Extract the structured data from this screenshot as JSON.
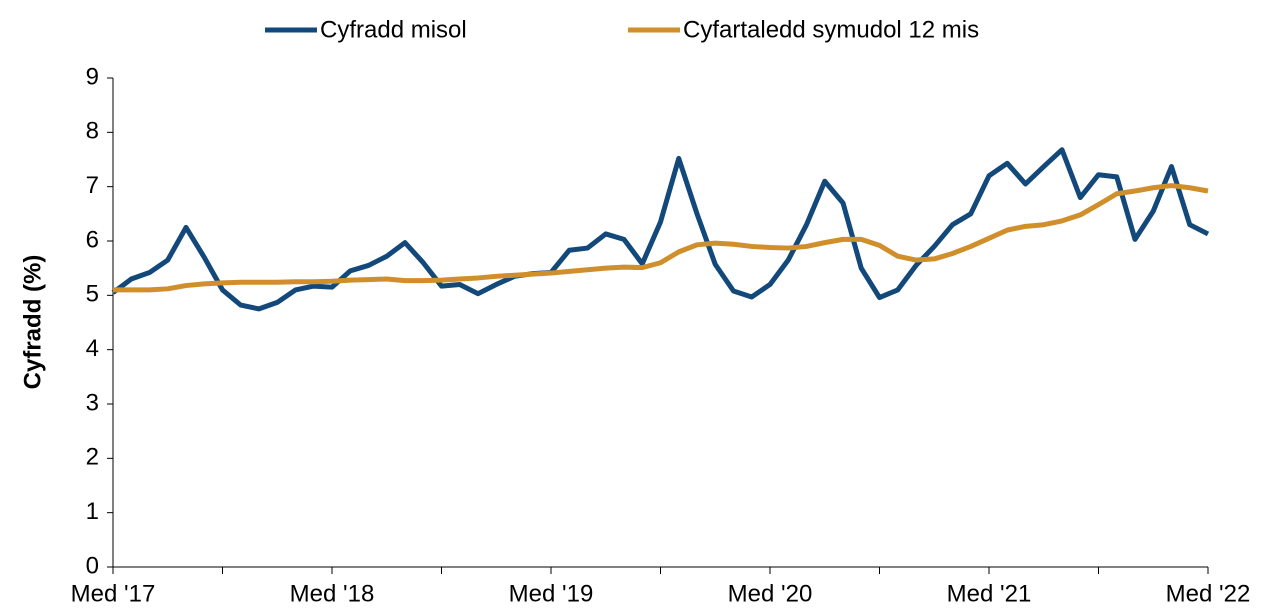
{
  "chart_data": {
    "type": "line",
    "y_label": "Cyfradd (%)",
    "categories": [
      "Med '17",
      null,
      null,
      null,
      null,
      null,
      null,
      null,
      null,
      null,
      null,
      null,
      "Med '18",
      null,
      null,
      null,
      null,
      null,
      null,
      null,
      null,
      null,
      null,
      null,
      "Med '19",
      null,
      null,
      null,
      null,
      null,
      null,
      null,
      null,
      null,
      null,
      null,
      "Med '20",
      null,
      null,
      null,
      null,
      null,
      null,
      null,
      null,
      null,
      null,
      null,
      "Med '21",
      null,
      null,
      null,
      null,
      null,
      null,
      null,
      null,
      null,
      null,
      null,
      "Med '22"
    ],
    "series": [
      {
        "name": "Cyfradd misol",
        "color": "#12497a",
        "values": [
          5.05,
          5.3,
          5.42,
          5.65,
          6.25,
          5.7,
          5.1,
          4.82,
          4.75,
          4.87,
          5.1,
          5.17,
          5.15,
          5.45,
          5.55,
          5.72,
          5.97,
          5.6,
          5.17,
          5.2,
          5.03,
          5.2,
          5.35,
          5.4,
          5.42,
          5.83,
          5.87,
          6.13,
          6.03,
          5.58,
          6.35,
          7.52,
          6.5,
          5.57,
          5.08,
          4.97,
          5.2,
          5.65,
          6.3,
          7.1,
          6.7,
          5.5,
          4.96,
          5.1,
          5.55,
          5.9,
          6.3,
          6.5,
          7.2,
          7.43,
          7.05,
          7.37,
          7.68,
          6.8,
          7.22,
          7.18,
          6.03,
          6.55,
          7.37,
          6.3,
          6.13
        ]
      },
      {
        "name": "Cyfartaledd symudol 12 mis",
        "color": "#d08f2b",
        "values": [
          5.1,
          5.1,
          5.1,
          5.12,
          5.18,
          5.21,
          5.23,
          5.24,
          5.24,
          5.24,
          5.25,
          5.25,
          5.26,
          5.28,
          5.29,
          5.3,
          5.27,
          5.27,
          5.28,
          5.3,
          5.32,
          5.35,
          5.37,
          5.39,
          5.41,
          5.44,
          5.47,
          5.5,
          5.52,
          5.51,
          5.6,
          5.8,
          5.93,
          5.96,
          5.94,
          5.9,
          5.88,
          5.87,
          5.9,
          5.97,
          6.03,
          6.03,
          5.92,
          5.72,
          5.65,
          5.67,
          5.77,
          5.9,
          6.05,
          6.2,
          6.27,
          6.3,
          6.37,
          6.48,
          6.67,
          6.87,
          6.92,
          6.98,
          7.02,
          6.98,
          6.92
        ]
      }
    ],
    "ylim": [
      0,
      9
    ],
    "yticks": [
      0,
      1,
      2,
      3,
      4,
      5,
      6,
      7,
      8,
      9
    ],
    "grid": false,
    "legend": "top"
  }
}
